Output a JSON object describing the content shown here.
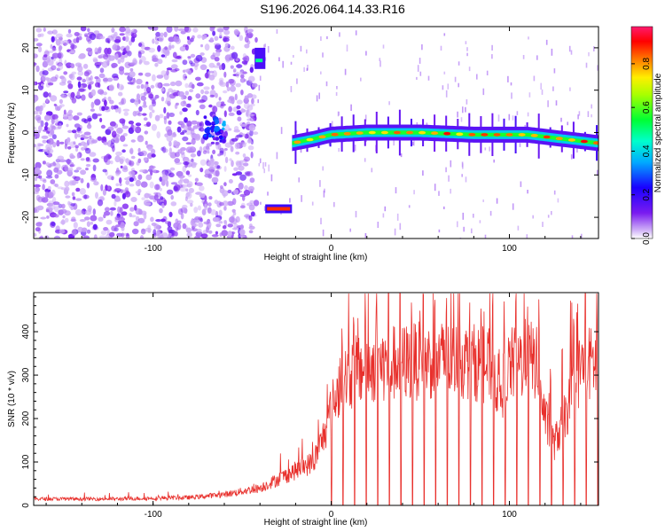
{
  "title": "S196.2026.064.14.33.R16",
  "colors": {
    "snr_line": "#e8302c",
    "spectrogram_low": "#7a1cf0",
    "spectrogram_high": "#ff1a6e",
    "axes": "#000000"
  },
  "chart_data": [
    {
      "type": "heatmap",
      "xlabel": "Height of straight line (km)",
      "ylabel": "Frequency (Hz)",
      "xlim": [
        -167,
        150
      ],
      "ylim": [
        -25,
        25
      ],
      "xticks": [
        -100,
        0,
        100
      ],
      "yticks": [
        -20,
        -10,
        0,
        10,
        20
      ],
      "colorbar": {
        "label": "Normalized spectral amplitude",
        "range": [
          0,
          0.97
        ],
        "ticks": [
          0.0,
          0.2,
          0.4,
          0.6,
          0.8
        ],
        "colormap": "rainbow (purple-blue-cyan-green-yellow-red-magenta)"
      },
      "features": [
        {
          "name": "noise",
          "x_range": [
            -167,
            -42
          ],
          "amplitude": 0.12
        },
        {
          "name": "blob",
          "x": -65,
          "y": 1,
          "amplitude": 0.35
        },
        {
          "name": "carrier-high",
          "x_range": [
            -43,
            -37
          ],
          "y_range": [
            15,
            20
          ],
          "amplitude": 0.5
        },
        {
          "name": "carrier-low",
          "x_range": [
            -37,
            -22
          ],
          "y": -18,
          "amplitude": 0.9
        },
        {
          "name": "carrier-main",
          "points": [
            [
              -22,
              -2.5
            ],
            [
              -10,
              -1.5
            ],
            [
              0,
              -0.5
            ],
            [
              20,
              0
            ],
            [
              50,
              0
            ],
            [
              80,
              -0.5
            ],
            [
              110,
              -0.5
            ],
            [
              130,
              -1.5
            ],
            [
              150,
              -2.5
            ]
          ],
          "amplitude": 0.85
        }
      ]
    },
    {
      "type": "line",
      "xlabel": "Height of straight line (km)",
      "ylabel": "SNR (10 * v/v)",
      "xlim": [
        -167,
        150
      ],
      "ylim": [
        0,
        490
      ],
      "xticks": [
        -100,
        0,
        100
      ],
      "yticks": [
        0,
        100,
        200,
        300,
        400
      ],
      "series": [
        {
          "values_description": "noisy line; envelope below",
          "envelope": [
            [
              -167,
              15
            ],
            [
              -120,
              15
            ],
            [
              -80,
              18
            ],
            [
              -60,
              25
            ],
            [
              -40,
              40
            ],
            [
              -30,
              60
            ],
            [
              -20,
              80
            ],
            [
              -10,
              100
            ],
            [
              -5,
              150
            ],
            [
              0,
              220
            ],
            [
              5,
              280
            ],
            [
              10,
              300
            ],
            [
              20,
              320
            ],
            [
              40,
              330
            ],
            [
              60,
              335
            ],
            [
              80,
              330
            ],
            [
              90,
              320
            ],
            [
              95,
              260
            ],
            [
              100,
              320
            ],
            [
              110,
              340
            ],
            [
              115,
              330
            ],
            [
              120,
              200
            ],
            [
              125,
              140
            ],
            [
              130,
              190
            ],
            [
              135,
              250
            ],
            [
              140,
              320
            ],
            [
              150,
              330
            ]
          ],
          "dropouts_to_zero_from": 0,
          "dropout_spacing": 6.5
        }
      ]
    }
  ],
  "panel1": {
    "xlabel": "Height of straight line (km)",
    "ylabel": "Frequency (Hz)",
    "xtick_labels": [
      "-100",
      "0",
      "100"
    ],
    "ytick_labels": [
      "-20",
      "-10",
      "0",
      "10",
      "20"
    ]
  },
  "colorbar": {
    "label": "Normalized spectral amplitude",
    "tick_labels": [
      "0.0",
      "0.2",
      "0.4",
      "0.6",
      "0.8"
    ]
  },
  "panel2": {
    "xlabel": "Height of straight line (km)",
    "ylabel": "SNR (10 * v/v)",
    "xtick_labels": [
      "-100",
      "0",
      "100"
    ],
    "ytick_labels": [
      "0",
      "100",
      "200",
      "300",
      "400"
    ]
  }
}
